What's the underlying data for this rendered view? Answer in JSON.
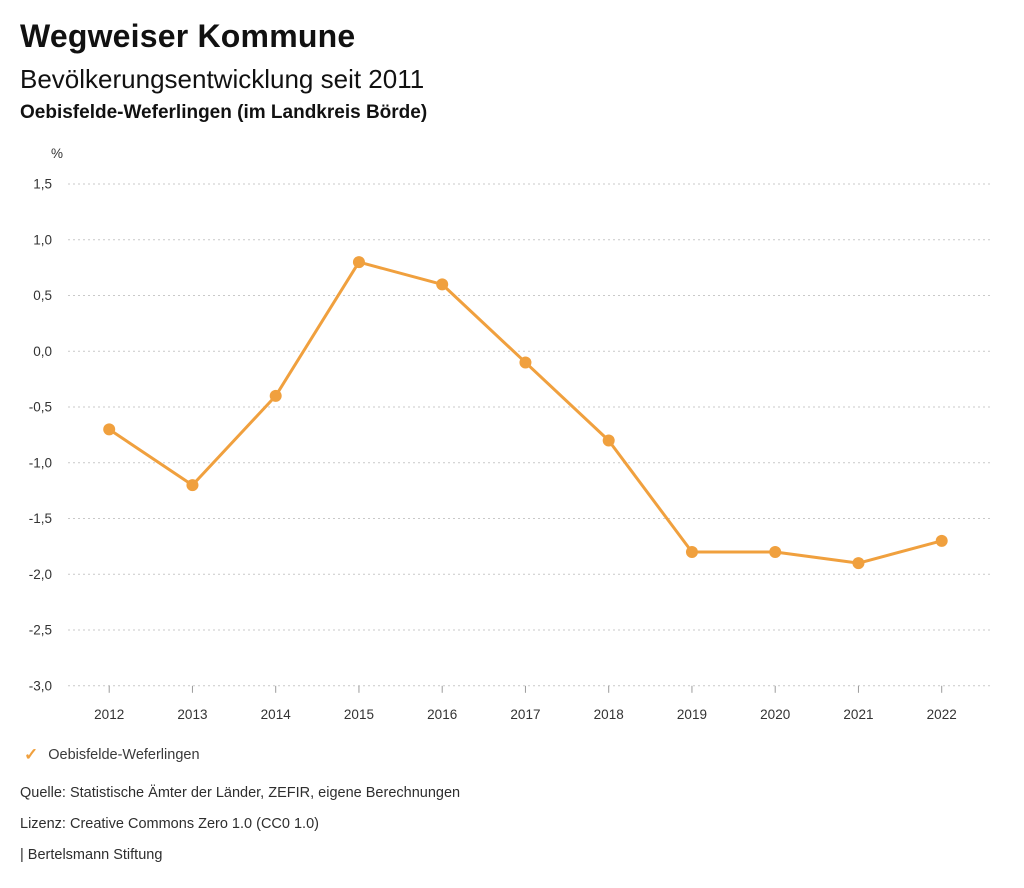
{
  "header": {
    "title": "Wegweiser Kommune",
    "subtitle": "Bevölkerungsentwicklung seit 2011",
    "region": "Oebisfelde-Weferlingen (im Landkreis Börde)"
  },
  "legend": {
    "check_icon": "✓",
    "label": "Oebisfelde-Weferlingen"
  },
  "footer": {
    "source": "Quelle: Statistische Ämter der Länder, ZEFIR, eigene Berechnungen",
    "license": "Lizenz: Creative Commons Zero 1.0 (CC0 1.0)",
    "attribution": "| Bertelsmann Stiftung"
  },
  "colors": {
    "series": "#F0A03E",
    "grid": "#C9C9C9",
    "tick": "#9B9B9B",
    "text": "#333333"
  },
  "chart_data": {
    "type": "line",
    "title": "Bevölkerungsentwicklung seit 2011",
    "subtitle": "Oebisfelde-Weferlingen (im Landkreis Börde)",
    "unit": "%",
    "x": [
      2012,
      2013,
      2014,
      2015,
      2016,
      2017,
      2018,
      2019,
      2020,
      2021,
      2022
    ],
    "series": [
      {
        "name": "Oebisfelde-Weferlingen",
        "values": [
          -0.7,
          -1.2,
          -0.4,
          0.8,
          0.6,
          -0.1,
          -0.8,
          -1.8,
          -1.8,
          -1.9,
          -1.7
        ]
      }
    ],
    "ylim": [
      -3.0,
      1.5
    ],
    "ytick_step": 0.5,
    "ytick_labels": [
      "1,5",
      "1,0",
      "0,5",
      "0,0",
      "-0,5",
      "-1,0",
      "-1,5",
      "-2,0",
      "-2,5",
      "-3,0"
    ],
    "ylabel": "%",
    "xlabel": "",
    "grid": "horizontal-dotted",
    "legend_position": "bottom-left",
    "line_color": "#F0A03E"
  }
}
